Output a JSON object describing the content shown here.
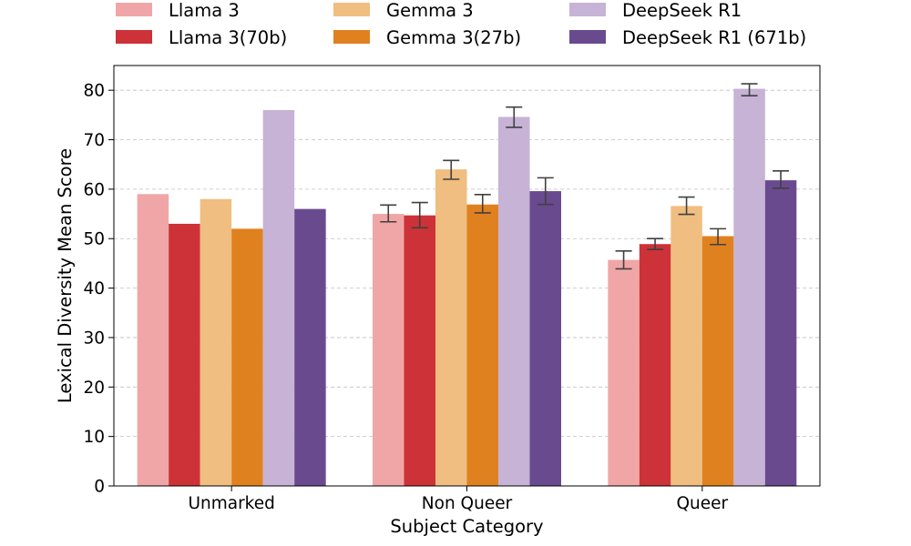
{
  "chart_data": {
    "type": "bar",
    "xlabel": "Subject Category",
    "ylabel": "Lexical Diversity Mean Score",
    "ylim": [
      0,
      85
    ],
    "yticks": [
      0,
      10,
      20,
      30,
      40,
      50,
      60,
      70,
      80
    ],
    "grid": "horizontal dashed",
    "legend_position": "top, above plot, 3 columns",
    "categories": [
      "Unmarked",
      "Non Queer",
      "Queer"
    ],
    "series": [
      {
        "name": "Llama 3",
        "color": "#f0a6a6",
        "values": [
          59.0,
          55.0,
          45.7
        ],
        "errors": [
          null,
          [
            53.4,
            56.8
          ],
          [
            43.9,
            47.5
          ]
        ]
      },
      {
        "name": "Llama 3(70b)",
        "color": "#cc3237",
        "values": [
          53.0,
          54.7,
          48.9
        ],
        "errors": [
          null,
          [
            52.2,
            57.3
          ],
          [
            47.8,
            50.0
          ]
        ]
      },
      {
        "name": "Gemma 3",
        "color": "#efbe80",
        "values": [
          58.0,
          64.0,
          56.6
        ],
        "errors": [
          null,
          [
            62.0,
            65.8
          ],
          [
            54.9,
            58.4
          ]
        ]
      },
      {
        "name": "Gemma 3(27b)",
        "color": "#e0811f",
        "values": [
          52.0,
          56.9,
          50.5
        ],
        "errors": [
          null,
          [
            55.2,
            58.9
          ],
          [
            48.8,
            52.0
          ]
        ]
      },
      {
        "name": "DeepSeek R1",
        "color": "#c6b3d5",
        "values": [
          76.0,
          74.6,
          80.3
        ],
        "errors": [
          null,
          [
            72.5,
            76.6
          ],
          [
            78.9,
            81.3
          ]
        ]
      },
      {
        "name": "DeepSeek R1 (671b)",
        "color": "#6a4a8f",
        "values": [
          56.0,
          59.6,
          61.8
        ],
        "errors": [
          null,
          [
            56.9,
            62.3
          ],
          [
            60.2,
            63.7
          ]
        ]
      }
    ]
  }
}
